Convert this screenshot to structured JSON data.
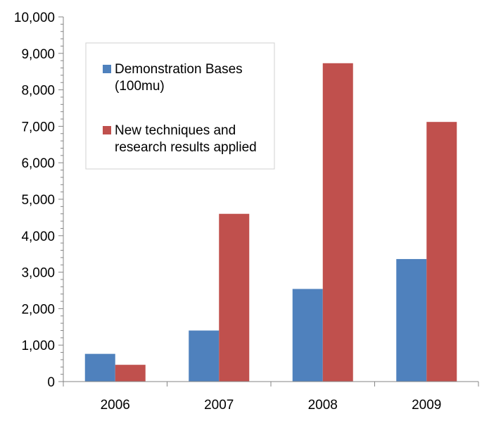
{
  "chart_data": {
    "type": "bar",
    "title": "",
    "xlabel": "",
    "ylabel": "",
    "categories": [
      "2006",
      "2007",
      "2008",
      "2009"
    ],
    "series": [
      {
        "name": "Demonstration Bases (100mu)",
        "color": "#4F81BD",
        "values": [
          760,
          1400,
          2540,
          3360
        ]
      },
      {
        "name": "New techniques and research results applied",
        "color": "#C0504D",
        "values": [
          460,
          4600,
          8730,
          7120
        ]
      }
    ],
    "ylim": [
      0,
      10000
    ],
    "y_ticks": [
      0,
      1000,
      2000,
      3000,
      4000,
      5000,
      6000,
      7000,
      8000,
      9000,
      10000
    ],
    "y_tick_labels": [
      "0",
      "1,000",
      "2,000",
      "3,000",
      "4,000",
      "5,000",
      "6,000",
      "7,000",
      "8,000",
      "9,000",
      "10,000"
    ],
    "grid": false,
    "legend_position": "upper-left inside plot",
    "legend_lines": [
      [
        "Demonstration Bases",
        "(100mu)"
      ],
      [
        "New techniques and",
        "research results applied"
      ]
    ]
  }
}
